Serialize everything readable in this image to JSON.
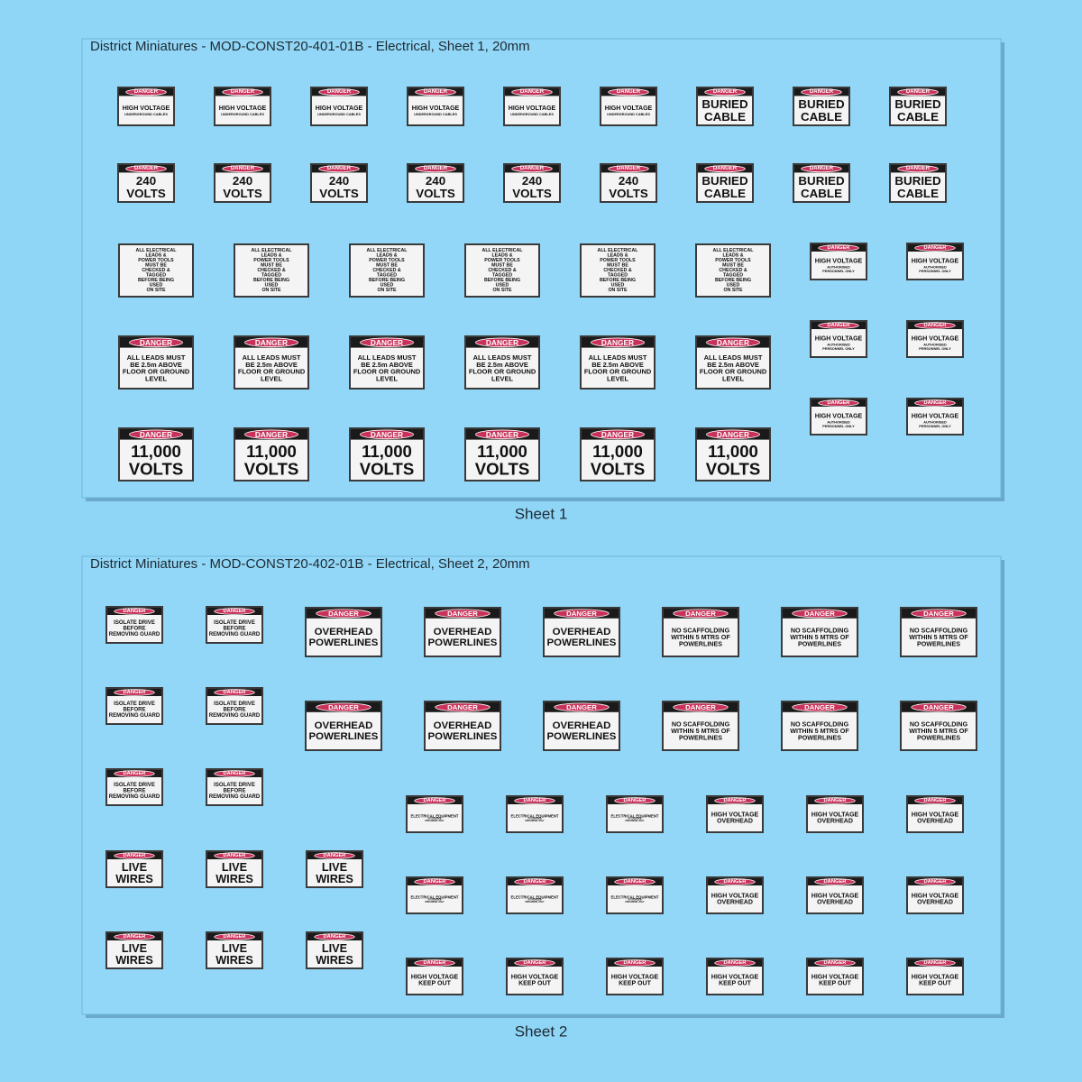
{
  "sheets": [
    {
      "title": "District Miniatures - MOD-CONST20-401-01B - Electrical, Sheet 1, 20mm",
      "caption": "Sheet 1",
      "groups": [
        {
          "signs": [
            {
              "header": "DANGER",
              "lines": [
                "HIGH VOLTAGE"
              ],
              "note": [
                "UNDERGROUND CABLES"
              ]
            },
            {
              "header": "DANGER",
              "lines": [
                "HIGH VOLTAGE"
              ],
              "note": [
                "UNDERGROUND CABLES"
              ]
            },
            {
              "header": "DANGER",
              "lines": [
                "HIGH VOLTAGE"
              ],
              "note": [
                "UNDERGROUND CABLES"
              ]
            },
            {
              "header": "DANGER",
              "lines": [
                "HIGH VOLTAGE"
              ],
              "note": [
                "UNDERGROUND CABLES"
              ]
            },
            {
              "header": "DANGER",
              "lines": [
                "HIGH VOLTAGE"
              ],
              "note": [
                "UNDERGROUND CABLES"
              ]
            },
            {
              "header": "DANGER",
              "lines": [
                "HIGH VOLTAGE"
              ],
              "note": [
                "UNDERGROUND CABLES"
              ]
            },
            {
              "header": "DANGER",
              "lines": [
                "BURIED",
                "CABLE"
              ]
            },
            {
              "header": "DANGER",
              "lines": [
                "BURIED",
                "CABLE"
              ]
            },
            {
              "header": "DANGER",
              "lines": [
                "BURIED",
                "CABLE"
              ]
            },
            {
              "header": "DANGER",
              "lines": [
                "240",
                "VOLTS"
              ]
            },
            {
              "header": "DANGER",
              "lines": [
                "240",
                "VOLTS"
              ]
            },
            {
              "header": "DANGER",
              "lines": [
                "240",
                "VOLTS"
              ]
            },
            {
              "header": "DANGER",
              "lines": [
                "240",
                "VOLTS"
              ]
            },
            {
              "header": "DANGER",
              "lines": [
                "240",
                "VOLTS"
              ]
            },
            {
              "header": "DANGER",
              "lines": [
                "240",
                "VOLTS"
              ]
            },
            {
              "header": "DANGER",
              "lines": [
                "BURIED",
                "CABLE"
              ]
            },
            {
              "header": "DANGER",
              "lines": [
                "BURIED",
                "CABLE"
              ]
            },
            {
              "header": "DANGER",
              "lines": [
                "BURIED",
                "CABLE"
              ]
            }
          ]
        },
        {
          "signs": [
            {
              "lines": [
                "ALL ELECTRICAL",
                "LEADS &",
                "POWER TOOLS",
                "MUST BE",
                "CHECKED &",
                "TAGGED",
                "BEFORE BEING",
                "USED",
                "ON SITE"
              ]
            },
            {
              "lines": [
                "ALL ELECTRICAL",
                "LEADS &",
                "POWER TOOLS",
                "MUST BE",
                "CHECKED &",
                "TAGGED",
                "BEFORE BEING",
                "USED",
                "ON SITE"
              ]
            },
            {
              "lines": [
                "ALL ELECTRICAL",
                "LEADS &",
                "POWER TOOLS",
                "MUST BE",
                "CHECKED &",
                "TAGGED",
                "BEFORE BEING",
                "USED",
                "ON SITE"
              ]
            },
            {
              "lines": [
                "ALL ELECTRICAL",
                "LEADS &",
                "POWER TOOLS",
                "MUST BE",
                "CHECKED &",
                "TAGGED",
                "BEFORE BEING",
                "USED",
                "ON SITE"
              ]
            },
            {
              "lines": [
                "ALL ELECTRICAL",
                "LEADS &",
                "POWER TOOLS",
                "MUST BE",
                "CHECKED &",
                "TAGGED",
                "BEFORE BEING",
                "USED",
                "ON SITE"
              ]
            },
            {
              "lines": [
                "ALL ELECTRICAL",
                "LEADS &",
                "POWER TOOLS",
                "MUST BE",
                "CHECKED &",
                "TAGGED",
                "BEFORE BEING",
                "USED",
                "ON SITE"
              ]
            },
            {
              "header": "DANGER",
              "lines": [
                "ALL LEADS MUST",
                "BE 2.5m ABOVE",
                "FLOOR OR GROUND",
                "LEVEL"
              ]
            },
            {
              "header": "DANGER",
              "lines": [
                "ALL LEADS MUST",
                "BE 2.5m ABOVE",
                "FLOOR OR GROUND",
                "LEVEL"
              ]
            },
            {
              "header": "DANGER",
              "lines": [
                "ALL LEADS MUST",
                "BE 2.5m ABOVE",
                "FLOOR OR GROUND",
                "LEVEL"
              ]
            },
            {
              "header": "DANGER",
              "lines": [
                "ALL LEADS MUST",
                "BE 2.5m ABOVE",
                "FLOOR OR GROUND",
                "LEVEL"
              ]
            },
            {
              "header": "DANGER",
              "lines": [
                "ALL LEADS MUST",
                "BE 2.5m ABOVE",
                "FLOOR OR GROUND",
                "LEVEL"
              ]
            },
            {
              "header": "DANGER",
              "lines": [
                "ALL LEADS MUST",
                "BE 2.5m ABOVE",
                "FLOOR OR GROUND",
                "LEVEL"
              ]
            },
            {
              "header": "DANGER",
              "lines": [
                "11,000",
                "VOLTS"
              ]
            },
            {
              "header": "DANGER",
              "lines": [
                "11,000",
                "VOLTS"
              ]
            },
            {
              "header": "DANGER",
              "lines": [
                "11,000",
                "VOLTS"
              ]
            },
            {
              "header": "DANGER",
              "lines": [
                "11,000",
                "VOLTS"
              ]
            },
            {
              "header": "DANGER",
              "lines": [
                "11,000",
                "VOLTS"
              ]
            },
            {
              "header": "DANGER",
              "lines": [
                "11,000",
                "VOLTS"
              ]
            }
          ]
        },
        {
          "signs": [
            {
              "header": "DANGER",
              "lines": [
                "HIGH VOLTAGE"
              ],
              "note": [
                "AUTHORISED",
                "PERSONNEL ONLY"
              ]
            },
            {
              "header": "DANGER",
              "lines": [
                "HIGH VOLTAGE"
              ],
              "note": [
                "AUTHORISED",
                "PERSONNEL ONLY"
              ]
            },
            {
              "header": "DANGER",
              "lines": [
                "HIGH VOLTAGE"
              ],
              "note": [
                "AUTHORISED",
                "PERSONNEL ONLY"
              ]
            },
            {
              "header": "DANGER",
              "lines": [
                "HIGH VOLTAGE"
              ],
              "note": [
                "AUTHORISED",
                "PERSONNEL ONLY"
              ]
            },
            {
              "header": "DANGER",
              "lines": [
                "HIGH VOLTAGE"
              ],
              "note": [
                "AUTHORISED",
                "PERSONNEL ONLY"
              ]
            },
            {
              "header": "DANGER",
              "lines": [
                "HIGH VOLTAGE"
              ],
              "note": [
                "AUTHORISED",
                "PERSONNEL ONLY"
              ]
            }
          ]
        }
      ]
    },
    {
      "title": "District Miniatures - MOD-CONST20-402-01B - Electrical, Sheet 2, 20mm",
      "caption": "Sheet 2",
      "groups": [
        {
          "signs": [
            {
              "header": "DANGER",
              "lines": [
                "ISOLATE DRIVE",
                "BEFORE",
                "REMOVING GUARD"
              ]
            },
            {
              "header": "DANGER",
              "lines": [
                "ISOLATE DRIVE",
                "BEFORE",
                "REMOVING GUARD"
              ]
            },
            {
              "header": "DANGER",
              "lines": [
                "ISOLATE DRIVE",
                "BEFORE",
                "REMOVING GUARD"
              ]
            },
            {
              "header": "DANGER",
              "lines": [
                "ISOLATE DRIVE",
                "BEFORE",
                "REMOVING GUARD"
              ]
            },
            {
              "header": "DANGER",
              "lines": [
                "ISOLATE DRIVE",
                "BEFORE",
                "REMOVING GUARD"
              ]
            },
            {
              "header": "DANGER",
              "lines": [
                "ISOLATE DRIVE",
                "BEFORE",
                "REMOVING GUARD"
              ]
            }
          ]
        },
        {
          "signs": [
            {
              "header": "DANGER",
              "lines": [
                "OVERHEAD",
                "POWERLINES"
              ]
            },
            {
              "header": "DANGER",
              "lines": [
                "OVERHEAD",
                "POWERLINES"
              ]
            },
            {
              "header": "DANGER",
              "lines": [
                "OVERHEAD",
                "POWERLINES"
              ]
            },
            {
              "header": "DANGER",
              "lines": [
                "NO SCAFFOLDING",
                "WITHIN 5 MTRS OF",
                "POWERLINES"
              ]
            },
            {
              "header": "DANGER",
              "lines": [
                "NO SCAFFOLDING",
                "WITHIN 5 MTRS OF",
                "POWERLINES"
              ]
            },
            {
              "header": "DANGER",
              "lines": [
                "NO SCAFFOLDING",
                "WITHIN 5 MTRS OF",
                "POWERLINES"
              ]
            },
            {
              "header": "DANGER",
              "lines": [
                "OVERHEAD",
                "POWERLINES"
              ]
            },
            {
              "header": "DANGER",
              "lines": [
                "OVERHEAD",
                "POWERLINES"
              ]
            },
            {
              "header": "DANGER",
              "lines": [
                "OVERHEAD",
                "POWERLINES"
              ]
            },
            {
              "header": "DANGER",
              "lines": [
                "NO SCAFFOLDING",
                "WITHIN 5 MTRS OF",
                "POWERLINES"
              ]
            },
            {
              "header": "DANGER",
              "lines": [
                "NO SCAFFOLDING",
                "WITHIN 5 MTRS OF",
                "POWERLINES"
              ]
            },
            {
              "header": "DANGER",
              "lines": [
                "NO SCAFFOLDING",
                "WITHIN 5 MTRS OF",
                "POWERLINES"
              ]
            }
          ]
        },
        {
          "signs": [
            {
              "header": "DANGER",
              "lines": [
                "LIVE",
                "WIRES"
              ]
            },
            {
              "header": "DANGER",
              "lines": [
                "LIVE",
                "WIRES"
              ]
            },
            {
              "header": "DANGER",
              "lines": [
                "LIVE",
                "WIRES"
              ]
            },
            {
              "header": "DANGER",
              "lines": [
                "LIVE",
                "WIRES"
              ]
            },
            {
              "header": "DANGER",
              "lines": [
                "LIVE",
                "WIRES"
              ]
            },
            {
              "header": "DANGER",
              "lines": [
                "LIVE",
                "WIRES"
              ]
            }
          ]
        },
        {
          "signs": [
            {
              "header": "DANGER",
              "lines": [
                "ELECTRICAL EQUIPMENT"
              ],
              "note": [
                "AUTHORISED",
                "PERSONNEL ONLY"
              ]
            },
            {
              "header": "DANGER",
              "lines": [
                "ELECTRICAL EQUIPMENT"
              ],
              "note": [
                "AUTHORISED",
                "PERSONNEL ONLY"
              ]
            },
            {
              "header": "DANGER",
              "lines": [
                "ELECTRICAL EQUIPMENT"
              ],
              "note": [
                "AUTHORISED",
                "PERSONNEL ONLY"
              ]
            },
            {
              "header": "DANGER",
              "lines": [
                "HIGH VOLTAGE",
                "OVERHEAD"
              ]
            },
            {
              "header": "DANGER",
              "lines": [
                "HIGH VOLTAGE",
                "OVERHEAD"
              ]
            },
            {
              "header": "DANGER",
              "lines": [
                "HIGH VOLTAGE",
                "OVERHEAD"
              ]
            },
            {
              "header": "DANGER",
              "lines": [
                "ELECTRICAL EQUIPMENT"
              ],
              "note": [
                "AUTHORISED",
                "PERSONNEL ONLY"
              ]
            },
            {
              "header": "DANGER",
              "lines": [
                "ELECTRICAL EQUIPMENT"
              ],
              "note": [
                "AUTHORISED",
                "PERSONNEL ONLY"
              ]
            },
            {
              "header": "DANGER",
              "lines": [
                "ELECTRICAL EQUIPMENT"
              ],
              "note": [
                "AUTHORISED",
                "PERSONNEL ONLY"
              ]
            },
            {
              "header": "DANGER",
              "lines": [
                "HIGH VOLTAGE",
                "OVERHEAD"
              ]
            },
            {
              "header": "DANGER",
              "lines": [
                "HIGH VOLTAGE",
                "OVERHEAD"
              ]
            },
            {
              "header": "DANGER",
              "lines": [
                "HIGH VOLTAGE",
                "OVERHEAD"
              ]
            },
            {
              "header": "DANGER",
              "lines": [
                "HIGH VOLTAGE",
                "KEEP OUT"
              ]
            },
            {
              "header": "DANGER",
              "lines": [
                "HIGH VOLTAGE",
                "KEEP OUT"
              ]
            },
            {
              "header": "DANGER",
              "lines": [
                "HIGH VOLTAGE",
                "KEEP OUT"
              ]
            },
            {
              "header": "DANGER",
              "lines": [
                "HIGH VOLTAGE",
                "KEEP OUT"
              ]
            },
            {
              "header": "DANGER",
              "lines": [
                "HIGH VOLTAGE",
                "KEEP OUT"
              ]
            },
            {
              "header": "DANGER",
              "lines": [
                "HIGH VOLTAGE",
                "KEEP OUT"
              ]
            }
          ]
        }
      ]
    }
  ]
}
